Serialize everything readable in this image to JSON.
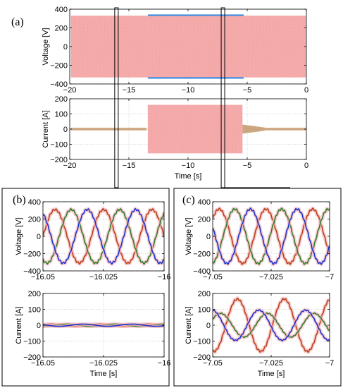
{
  "figure": {
    "panel_labels": {
      "a": "(a)",
      "b": "(b)",
      "c": "(c)"
    }
  },
  "chart_data": [
    {
      "id": "a1",
      "type": "line",
      "panel": "(a)",
      "title": "",
      "xlabel": "",
      "ylabel": "Voltage [V]",
      "xlim": [
        -20,
        0
      ],
      "ylim": [
        -400,
        400
      ],
      "xticks": [
        -20,
        -15,
        -10,
        -5,
        0
      ],
      "yticks": [
        -400,
        -200,
        0,
        200,
        400
      ],
      "grid": true,
      "series": [
        {
          "color": "#f4a6a6",
          "fill": true,
          "segments": [
            {
              "x": [
                -19.9,
                -0.05
              ],
              "amplitude": 330
            }
          ]
        },
        {
          "color": "#4a8fe0",
          "segments": [
            {
              "x": [
                -13.4,
                -5.3
              ],
              "amplitude": 335
            }
          ]
        }
      ]
    },
    {
      "id": "a2",
      "type": "line",
      "panel": "(a)",
      "title": "",
      "xlabel": "Time [s]",
      "ylabel": "Current [A]",
      "xlim": [
        -20,
        0
      ],
      "ylim": [
        -200,
        200
      ],
      "xticks": [
        -20,
        -15,
        -10,
        -5,
        0
      ],
      "yticks": [
        -200,
        -100,
        0,
        100,
        200
      ],
      "grid": true,
      "series": [
        {
          "color": "#c9a27a",
          "fill": true,
          "segments": [
            {
              "x": [
                -19.9,
                -13.5
              ],
              "amplitude": 8
            },
            {
              "x": [
                -5.4,
                -3.5
              ],
              "amplitude": 30,
              "decay_to": 10
            },
            {
              "x": [
                -3.5,
                -0.05
              ],
              "amplitude": 8
            }
          ]
        },
        {
          "color": "#f4a6a6",
          "fill": true,
          "segments": [
            {
              "x": [
                -13.4,
                -5.4
              ],
              "amplitude": 160
            }
          ]
        }
      ],
      "zoom_windows": [
        -16.05,
        -7.05
      ]
    },
    {
      "id": "b1",
      "type": "line",
      "panel": "(b)",
      "title": "",
      "xlabel": "",
      "ylabel": "Voltage [V]",
      "xlim": [
        -16.05,
        -16
      ],
      "ylim": [
        -400,
        400
      ],
      "xticks": [
        -16.05,
        -16.025,
        -16
      ],
      "yticks": [
        -400,
        -200,
        0,
        200,
        400
      ],
      "grid": true,
      "period": 0.02,
      "series": [
        {
          "color": "#b8411e",
          "amplitude": 310,
          "phase_deg": 0
        },
        {
          "color": "#2e7d32",
          "amplitude": 310,
          "phase_deg": -120
        },
        {
          "color": "#1a33d1",
          "amplitude": 310,
          "phase_deg": 120
        }
      ]
    },
    {
      "id": "b2",
      "type": "line",
      "panel": "(b)",
      "title": "",
      "xlabel": "Time [s]",
      "ylabel": "Current [A]",
      "xlim": [
        -16.05,
        -16
      ],
      "ylim": [
        -200,
        200
      ],
      "xticks": [
        -16.05,
        -16.025,
        -16
      ],
      "yticks": [
        -200,
        -100,
        0,
        100,
        200
      ],
      "grid": true,
      "period": 0.02,
      "series": [
        {
          "color": "#b8411e",
          "amplitude": 7,
          "phase_deg": 30
        },
        {
          "color": "#2e7d32",
          "amplitude": 7,
          "phase_deg": -90
        },
        {
          "color": "#1a33d1",
          "amplitude": 7,
          "phase_deg": 150
        }
      ]
    },
    {
      "id": "c1",
      "type": "line",
      "panel": "(c)",
      "title": "",
      "xlabel": "",
      "ylabel": "Voltage [V]",
      "xlim": [
        -7.05,
        -7
      ],
      "ylim": [
        -400,
        400
      ],
      "xticks": [
        -7.05,
        -7.025,
        -7
      ],
      "yticks": [
        -400,
        -200,
        0,
        200,
        400
      ],
      "grid": true,
      "period": 0.02,
      "series": [
        {
          "color": "#b8411e",
          "amplitude": 315,
          "phase_deg": 40
        },
        {
          "color": "#2e7d32",
          "amplitude": 315,
          "phase_deg": -80
        },
        {
          "color": "#1a33d1",
          "amplitude": 315,
          "phase_deg": 160
        }
      ]
    },
    {
      "id": "c2",
      "type": "line",
      "panel": "(c)",
      "title": "",
      "xlabel": "Time [s]",
      "ylabel": "Current [A]",
      "xlim": [
        -7.05,
        -7
      ],
      "ylim": [
        -200,
        200
      ],
      "xticks": [
        -7.05,
        -7.025,
        -7
      ],
      "yticks": [
        -200,
        -100,
        0,
        100,
        200
      ],
      "grid": true,
      "period": 0.02,
      "series": [
        {
          "color": "#b8411e",
          "amplitude": 165,
          "phase_deg": -100
        },
        {
          "color": "#2e7d32",
          "amplitude": 75,
          "phase_deg": 30
        },
        {
          "color": "#1a33d1",
          "amplitude": 95,
          "phase_deg": 95
        }
      ]
    }
  ]
}
